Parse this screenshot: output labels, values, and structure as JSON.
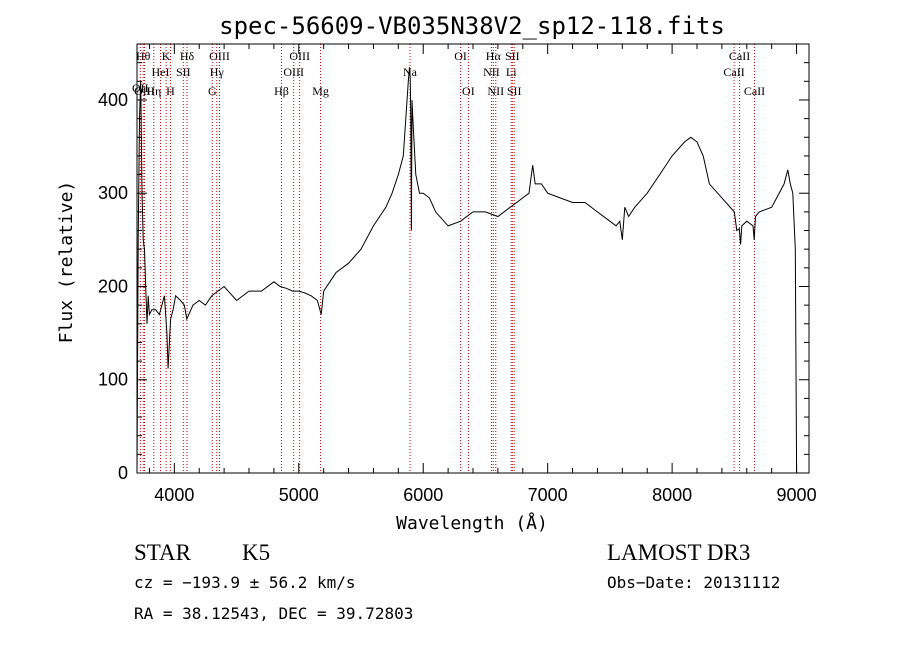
{
  "chart_data": {
    "type": "line",
    "title": "spec-56609-VB035N38V2_sp12-118.fits",
    "xlabel": "Wavelength (Å)",
    "ylabel": "Flux (relative)",
    "xlim": [
      3700,
      9100
    ],
    "ylim": [
      0,
      460
    ],
    "x_ticks": [
      4000,
      5000,
      6000,
      7000,
      8000,
      9000
    ],
    "y_ticks": [
      0,
      100,
      200,
      300,
      400
    ],
    "series": [
      {
        "x": [
          3700,
          3710,
          3720,
          3730,
          3740,
          3750,
          3760,
          3770,
          3780,
          3790,
          3800,
          3820,
          3850,
          3880,
          3900,
          3920,
          3940,
          3950,
          3960,
          3970,
          3990,
          4010,
          4050,
          4080,
          4100,
          4150,
          4200,
          4250,
          4300,
          4350,
          4400,
          4500,
          4600,
          4700,
          4800,
          4850,
          4900,
          4950,
          5000,
          5050,
          5100,
          5150,
          5180,
          5200,
          5250,
          5300,
          5400,
          5500,
          5600,
          5700,
          5750,
          5800,
          5840,
          5860,
          5880,
          5890,
          5895,
          5900,
          5905,
          5910,
          5920,
          5940,
          5970,
          6000,
          6050,
          6100,
          6200,
          6300,
          6400,
          6500,
          6600,
          6700,
          6800,
          6850,
          6880,
          6900,
          6950,
          7000,
          7100,
          7200,
          7300,
          7400,
          7500,
          7550,
          7580,
          7600,
          7620,
          7650,
          7700,
          7800,
          7900,
          8000,
          8100,
          8150,
          8200,
          8250,
          8300,
          8400,
          8500,
          8520,
          8540,
          8550,
          8560,
          8600,
          8650,
          8660,
          8670,
          8700,
          8800,
          8900,
          8930,
          8950,
          8970,
          8990,
          9000
        ],
        "y": [
          0,
          250,
          380,
          420,
          300,
          250,
          240,
          200,
          160,
          190,
          170,
          175,
          175,
          170,
          180,
          190,
          150,
          112,
          140,
          165,
          175,
          190,
          185,
          180,
          165,
          180,
          185,
          180,
          190,
          195,
          200,
          185,
          195,
          195,
          205,
          200,
          198,
          195,
          195,
          193,
          190,
          185,
          170,
          195,
          205,
          215,
          225,
          240,
          265,
          285,
          300,
          320,
          340,
          380,
          420,
          435,
          425,
          380,
          260,
          400,
          370,
          320,
          300,
          300,
          295,
          280,
          265,
          270,
          280,
          280,
          275,
          285,
          295,
          300,
          330,
          310,
          310,
          300,
          295,
          290,
          290,
          280,
          270,
          265,
          270,
          250,
          285,
          275,
          285,
          300,
          320,
          340,
          355,
          360,
          355,
          340,
          310,
          295,
          280,
          260,
          262,
          245,
          265,
          270,
          265,
          250,
          275,
          280,
          285,
          310,
          325,
          310,
          300,
          240,
          0
        ]
      }
    ],
    "spectral_lines": [
      {
        "label": "OII",
        "wave": 3727,
        "row": 2
      },
      {
        "label": "Hθ",
        "wave": 3750,
        "row": 0
      },
      {
        "label": "OIII",
        "wave": 3760,
        "row": 3
      },
      {
        "label": "Hη",
        "wave": 3835,
        "row": 3
      },
      {
        "label": "HeI",
        "wave": 3889,
        "row": 1
      },
      {
        "label": "K",
        "wave": 3934,
        "row": 0
      },
      {
        "label": "H",
        "wave": 3969,
        "row": 3
      },
      {
        "label": "SII",
        "wave": 4072,
        "row": 1
      },
      {
        "label": "Hδ",
        "wave": 4102,
        "row": 0
      },
      {
        "label": "G",
        "wave": 4305,
        "row": 3
      },
      {
        "label": "Hγ",
        "wave": 4341,
        "row": 1
      },
      {
        "label": "OIII",
        "wave": 4363,
        "row": 0
      },
      {
        "label": "Hβ",
        "wave": 4861,
        "row": 3
      },
      {
        "label": "OIII",
        "wave": 4959,
        "row": 1
      },
      {
        "label": "OIII",
        "wave": 5007,
        "row": 0
      },
      {
        "label": "Mg",
        "wave": 5175,
        "row": 3
      },
      {
        "label": "Na",
        "wave": 5894,
        "row": 1
      },
      {
        "label": "OI",
        "wave": 6300,
        "row": 0
      },
      {
        "label": "OI",
        "wave": 6363,
        "row": 3
      },
      {
        "label": "NII",
        "wave": 6548,
        "row": 1
      },
      {
        "label": "Hα",
        "wave": 6563,
        "row": 0
      },
      {
        "label": "NII",
        "wave": 6583,
        "row": 3
      },
      {
        "label": "Li",
        "wave": 6707,
        "row": 1
      },
      {
        "label": "SII",
        "wave": 6716,
        "row": 0
      },
      {
        "label": "SII",
        "wave": 6731,
        "row": 3
      },
      {
        "label": "CaII",
        "wave": 8498,
        "row": 1
      },
      {
        "label": "CaII",
        "wave": 8542,
        "row": 0
      },
      {
        "label": "CaII",
        "wave": 8662,
        "row": 3
      }
    ],
    "grid": false
  },
  "info": {
    "object_class": "STAR",
    "subclass": "K5",
    "survey": "LAMOST DR3",
    "redshift": "cz = −193.9 ± 56.2 km/s",
    "obs_date": "Obs−Date: 20131112",
    "coords": "RA =  38.12543, DEC =  39.72803"
  },
  "colors": {
    "spectrum": "#000000",
    "line_markers": "#cc0000"
  }
}
